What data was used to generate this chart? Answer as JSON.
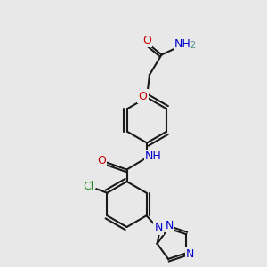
{
  "bg_color": "#e8e8e8",
  "bond_color": "#1a1a1a",
  "bond_width": 1.5,
  "atom_colors": {
    "O": "#cc0000",
    "N": "#0000cc",
    "Cl": "#228b22",
    "C": "#1a1a1a",
    "H": "#4a9090"
  },
  "font_size": 9,
  "font_size_small": 8
}
